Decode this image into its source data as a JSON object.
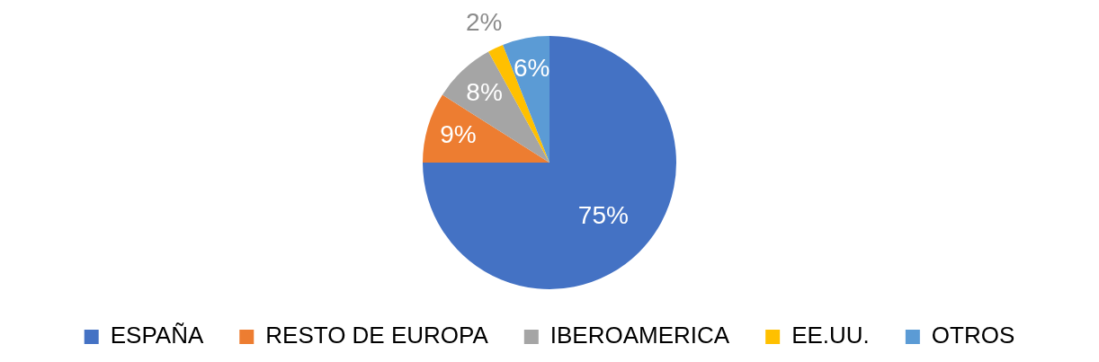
{
  "chart_data": {
    "type": "pie",
    "categories": [
      "ESPAÑA",
      "RESTO DE EUROPA",
      "IBEROAMERICA",
      "EE.UU.",
      "OTROS"
    ],
    "values": [
      75,
      9,
      8,
      2,
      6
    ],
    "colors": [
      "#4472c4",
      "#ed7d31",
      "#a5a5a5",
      "#ffc000",
      "#5b9bd5"
    ],
    "value_labels": [
      "75%",
      "9%",
      "8%",
      "2%",
      "6%"
    ],
    "legend": "bottom"
  }
}
